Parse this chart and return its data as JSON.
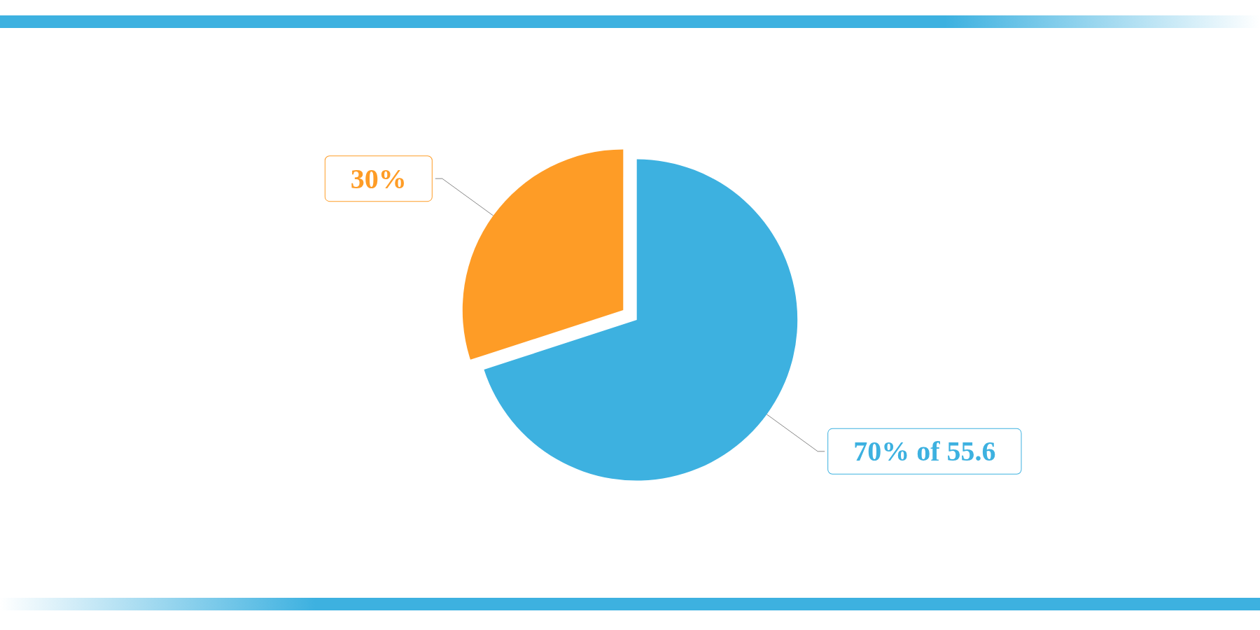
{
  "chart_data": {
    "type": "pie",
    "categories": [
      "30%",
      "70% of 55.6"
    ],
    "values": [
      30,
      70
    ],
    "colors": [
      "#fe9c26",
      "#3db1e0"
    ],
    "legend": false
  }
}
